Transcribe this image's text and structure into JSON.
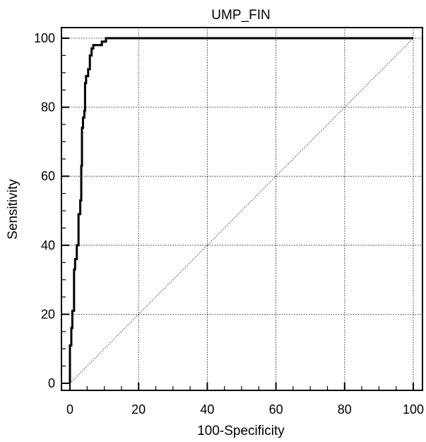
{
  "chart_data": {
    "type": "line",
    "title": "UMP_FIN",
    "xlabel": "100-Specificity",
    "ylabel": "Sensitivity",
    "xlim": [
      0,
      100
    ],
    "ylim": [
      0,
      100
    ],
    "xticks": [
      "0",
      "20",
      "40",
      "60",
      "80",
      "100"
    ],
    "yticks": [
      "0",
      "20",
      "40",
      "60",
      "80",
      "100"
    ],
    "grid": true,
    "series": [
      {
        "x": [
          0,
          0,
          0.4,
          0.4,
          0.7,
          0.7,
          1.2,
          1.2,
          1.5,
          1.5,
          2.0,
          2.0,
          2.5,
          2.5,
          3.0,
          3.0,
          3.3,
          3.3,
          3.5,
          3.5,
          3.8,
          3.8,
          4.2,
          4.2,
          4.4,
          4.4,
          4.7,
          4.7,
          5.3,
          5.3,
          5.8,
          5.8,
          6.3,
          6.3,
          6.8,
          6.8,
          7.0,
          7.0,
          9.3,
          9.3,
          10.5,
          10.5,
          11.3,
          100
        ],
        "y": [
          0,
          11,
          11,
          16,
          16,
          21,
          21,
          33,
          33,
          36,
          36,
          40,
          40,
          49,
          49,
          53,
          53,
          63,
          63,
          74,
          74,
          77,
          77,
          79,
          79,
          87,
          87,
          89,
          89,
          91,
          91,
          95,
          95,
          97,
          97,
          98,
          98,
          98,
          98,
          99,
          99,
          100,
          100,
          100
        ]
      },
      {
        "x": [
          0,
          100
        ],
        "y": [
          0,
          100
        ]
      }
    ]
  }
}
